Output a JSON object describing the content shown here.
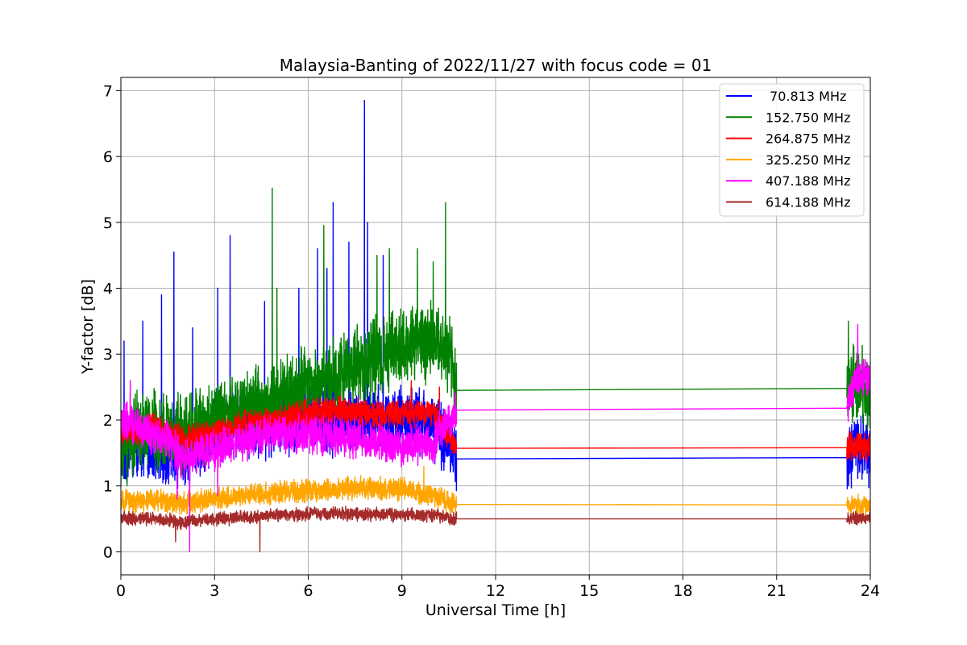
{
  "chart_data": {
    "type": "line",
    "title": "Malaysia-Banting of 2022/11/27 with focus code = 01",
    "xlabel": "Universal Time [h]",
    "ylabel": "Y-factor [dB]",
    "xlim": [
      0,
      24
    ],
    "ylim": [
      -0.35,
      7.2
    ],
    "xticks": [
      0,
      3,
      6,
      9,
      12,
      15,
      18,
      21,
      24
    ],
    "yticks": [
      0,
      1,
      2,
      3,
      4,
      5,
      6,
      7
    ],
    "grid": true,
    "legend_position": "top-right",
    "data_gap": [
      10.75,
      23.25
    ],
    "series": [
      {
        "name": " 70.813 MHz",
        "color": "#0000ff",
        "x": [
          0.0,
          0.5,
          1.0,
          1.5,
          2.0,
          2.5,
          3.0,
          3.5,
          4.0,
          4.5,
          5.0,
          5.5,
          6.0,
          6.5,
          7.0,
          7.5,
          8.0,
          8.5,
          9.0,
          9.5,
          10.0,
          10.5,
          10.75,
          23.25,
          23.5,
          24.0
        ],
        "values": [
          1.5,
          1.6,
          1.6,
          1.5,
          1.5,
          1.6,
          1.8,
          2.0,
          2.0,
          1.9,
          2.0,
          2.0,
          2.0,
          2.0,
          2.0,
          2.0,
          2.0,
          2.0,
          2.0,
          2.0,
          1.9,
          1.7,
          1.41,
          1.43,
          1.6,
          1.5
        ],
        "noise": 0.6,
        "spikes": [
          [
            0.1,
            3.2
          ],
          [
            0.7,
            3.5
          ],
          [
            1.3,
            3.9
          ],
          [
            1.7,
            4.55
          ],
          [
            2.3,
            3.4
          ],
          [
            3.1,
            4.0
          ],
          [
            3.5,
            4.8
          ],
          [
            4.6,
            3.8
          ],
          [
            5.7,
            4.0
          ],
          [
            6.3,
            4.6
          ],
          [
            6.6,
            4.3
          ],
          [
            6.8,
            5.3
          ],
          [
            7.3,
            4.7
          ],
          [
            7.8,
            6.85
          ],
          [
            7.9,
            5.0
          ],
          [
            8.4,
            4.5
          ]
        ]
      },
      {
        "name": "152.750 MHz",
        "color": "#008000",
        "x": [
          0.0,
          0.5,
          1.0,
          1.5,
          2.0,
          2.5,
          3.0,
          3.5,
          4.0,
          4.5,
          5.0,
          5.5,
          6.0,
          6.5,
          7.0,
          7.5,
          8.0,
          8.5,
          9.0,
          9.5,
          10.0,
          10.5,
          10.75,
          23.25,
          23.5,
          24.0
        ],
        "values": [
          1.5,
          1.8,
          1.9,
          1.8,
          1.8,
          1.9,
          2.0,
          2.1,
          2.2,
          2.2,
          2.3,
          2.4,
          2.5,
          2.6,
          2.7,
          2.8,
          2.9,
          3.0,
          3.1,
          3.2,
          3.2,
          3.0,
          2.45,
          2.48,
          2.6,
          2.3
        ],
        "noise": 0.7,
        "spikes": [
          [
            4.85,
            5.52
          ],
          [
            5.0,
            4.0
          ],
          [
            6.5,
            4.95
          ],
          [
            8.2,
            4.5
          ],
          [
            8.6,
            4.6
          ],
          [
            9.5,
            4.6
          ],
          [
            10.0,
            4.4
          ],
          [
            10.4,
            5.3
          ],
          [
            23.3,
            3.5
          ]
        ]
      },
      {
        "name": "264.875 MHz",
        "color": "#ff0000",
        "x": [
          0.0,
          1.0,
          2.0,
          3.0,
          4.0,
          5.0,
          6.0,
          7.0,
          8.0,
          9.0,
          10.0,
          10.75,
          23.25,
          24.0
        ],
        "values": [
          1.8,
          1.9,
          1.7,
          1.8,
          1.95,
          2.0,
          2.1,
          2.15,
          2.1,
          2.1,
          2.1,
          1.57,
          1.58,
          1.6
        ],
        "noise": 0.25,
        "spikes": [
          [
            9.3,
            2.6
          ],
          [
            10.2,
            2.5
          ]
        ]
      },
      {
        "name": "325.250 MHz",
        "color": "#ffa500",
        "x": [
          0.0,
          1.0,
          2.0,
          3.0,
          4.0,
          5.0,
          6.0,
          7.0,
          8.0,
          9.0,
          10.0,
          10.75,
          23.25,
          24.0
        ],
        "values": [
          0.75,
          0.78,
          0.75,
          0.8,
          0.85,
          0.9,
          0.92,
          0.95,
          0.97,
          0.95,
          0.85,
          0.72,
          0.71,
          0.72
        ],
        "noise": 0.2,
        "spikes": [
          [
            9.7,
            1.3
          ]
        ]
      },
      {
        "name": "407.188 MHz",
        "color": "#ff00ff",
        "x": [
          0.0,
          0.5,
          1.0,
          1.5,
          2.0,
          2.5,
          3.0,
          4.0,
          5.0,
          6.0,
          7.0,
          8.0,
          9.0,
          10.0,
          10.75,
          23.25,
          23.5,
          24.0
        ],
        "values": [
          2.0,
          1.9,
          1.8,
          1.7,
          1.4,
          1.5,
          1.55,
          1.7,
          1.8,
          1.8,
          1.75,
          1.7,
          1.6,
          1.65,
          2.15,
          2.18,
          2.6,
          2.7
        ],
        "noise": 0.35,
        "spikes": [
          [
            0.3,
            2.6
          ],
          [
            1.8,
            0.8
          ],
          [
            2.2,
            0.0
          ],
          [
            3.1,
            0.85
          ],
          [
            23.6,
            3.45
          ]
        ]
      },
      {
        "name": "614.188 MHz",
        "color": "#a52a2a",
        "x": [
          0.0,
          1.0,
          2.0,
          3.0,
          4.0,
          5.0,
          6.0,
          7.0,
          8.0,
          9.0,
          10.0,
          10.75,
          23.25,
          24.0
        ],
        "values": [
          0.5,
          0.5,
          0.45,
          0.5,
          0.52,
          0.55,
          0.57,
          0.58,
          0.57,
          0.56,
          0.55,
          0.5,
          0.5,
          0.52
        ],
        "noise": 0.12,
        "spikes": [
          [
            1.75,
            0.15
          ],
          [
            4.45,
            0.0
          ]
        ]
      }
    ]
  }
}
